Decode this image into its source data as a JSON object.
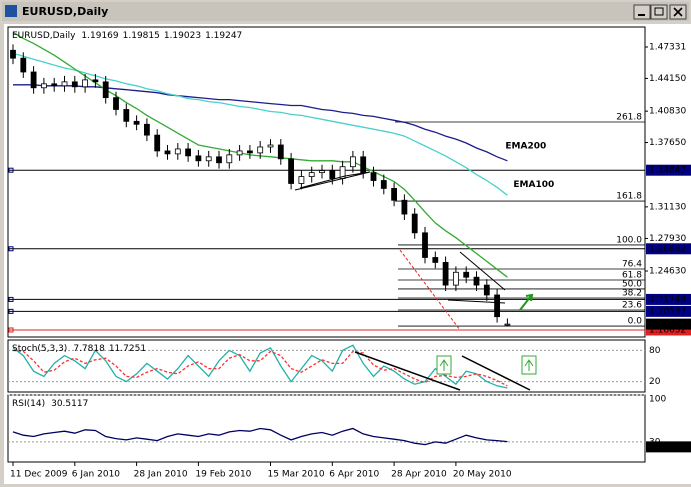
{
  "chart_data": [
    {
      "type": "candlestick",
      "title": "EURUSD,Daily",
      "categories": [
        "11 Dec 2009",
        null,
        null,
        null,
        null,
        null,
        "6 Jan 2010",
        null,
        null,
        null,
        null,
        null,
        "28 Jan 2010",
        null,
        null,
        null,
        null,
        null,
        "19 Feb 2010",
        null,
        null,
        null,
        null,
        null,
        null,
        "15 Mar 2010",
        null,
        null,
        null,
        null,
        null,
        "6 Apr 2010",
        null,
        null,
        null,
        null,
        null,
        "28 Apr 2010",
        null,
        null,
        null,
        null,
        null,
        "20 May 2010",
        null,
        null,
        null,
        null,
        null
      ],
      "open": [
        1.47,
        1.462,
        1.448,
        1.432,
        1.436,
        1.434,
        1.438,
        1.433,
        1.44,
        1.438,
        1.422,
        1.41,
        1.398,
        1.395,
        1.384,
        1.368,
        1.365,
        1.37,
        1.363,
        1.358,
        1.362,
        1.356,
        1.364,
        1.368,
        1.366,
        1.372,
        1.374,
        1.36,
        1.335,
        1.342,
        1.346,
        1.348,
        1.34,
        1.352,
        1.362,
        1.346,
        1.338,
        1.33,
        1.318,
        1.304,
        1.285,
        1.26,
        1.255,
        1.232,
        1.245,
        1.24,
        1.232,
        1.222,
        1.19169
      ],
      "high": [
        1.476,
        1.468,
        1.454,
        1.442,
        1.442,
        1.444,
        1.444,
        1.446,
        1.446,
        1.444,
        1.428,
        1.416,
        1.404,
        1.401,
        1.39,
        1.374,
        1.376,
        1.376,
        1.369,
        1.368,
        1.368,
        1.37,
        1.374,
        1.374,
        1.378,
        1.38,
        1.38,
        1.366,
        1.348,
        1.352,
        1.354,
        1.354,
        1.358,
        1.368,
        1.368,
        1.352,
        1.344,
        1.336,
        1.324,
        1.31,
        1.291,
        1.266,
        1.261,
        1.251,
        1.251,
        1.246,
        1.238,
        1.228,
        1.19815
      ],
      "low": [
        1.456,
        1.442,
        1.426,
        1.426,
        1.428,
        1.428,
        1.427,
        1.427,
        1.432,
        1.416,
        1.404,
        1.392,
        1.389,
        1.378,
        1.362,
        1.359,
        1.359,
        1.357,
        1.352,
        1.352,
        1.35,
        1.35,
        1.358,
        1.36,
        1.36,
        1.366,
        1.354,
        1.329,
        1.329,
        1.336,
        1.34,
        1.334,
        1.334,
        1.346,
        1.34,
        1.332,
        1.324,
        1.312,
        1.298,
        1.279,
        1.254,
        1.249,
        1.226,
        1.226,
        1.234,
        1.226,
        1.216,
        1.194,
        1.19023
      ],
      "close": [
        1.462,
        1.448,
        1.432,
        1.436,
        1.434,
        1.438,
        1.433,
        1.44,
        1.438,
        1.422,
        1.41,
        1.398,
        1.395,
        1.384,
        1.368,
        1.365,
        1.37,
        1.363,
        1.358,
        1.362,
        1.356,
        1.364,
        1.368,
        1.366,
        1.372,
        1.374,
        1.36,
        1.335,
        1.342,
        1.346,
        1.348,
        1.34,
        1.352,
        1.362,
        1.346,
        1.338,
        1.33,
        1.318,
        1.304,
        1.285,
        1.26,
        1.255,
        1.232,
        1.245,
        1.24,
        1.232,
        1.222,
        1.2,
        1.19247
      ],
      "series": [
        {
          "name": "EMA200",
          "color": "#1c1c8c",
          "values": [
            1.435,
            1.435,
            1.435,
            1.434,
            1.434,
            1.434,
            1.434,
            1.433,
            1.433,
            1.432,
            1.431,
            1.43,
            1.429,
            1.428,
            1.427,
            1.425,
            1.424,
            1.423,
            1.422,
            1.421,
            1.42,
            1.42,
            1.419,
            1.418,
            1.417,
            1.416,
            1.415,
            1.414,
            1.414,
            1.412,
            1.41,
            1.409,
            1.407,
            1.406,
            1.404,
            1.403,
            1.401,
            1.399,
            1.397,
            1.394,
            1.39,
            1.387,
            1.383,
            1.38,
            1.376,
            1.371,
            1.367,
            1.362,
            1.358
          ]
        },
        {
          "name": "EMA100",
          "color": "#48d1cc",
          "values": [
            1.467,
            1.464,
            1.461,
            1.458,
            1.455,
            1.452,
            1.45,
            1.447,
            1.444,
            1.441,
            1.439,
            1.436,
            1.434,
            1.431,
            1.429,
            1.426,
            1.424,
            1.421,
            1.42,
            1.418,
            1.417,
            1.415,
            1.413,
            1.412,
            1.41,
            1.408,
            1.407,
            1.405,
            1.404,
            1.402,
            1.4,
            1.398,
            1.396,
            1.394,
            1.392,
            1.39,
            1.388,
            1.386,
            1.383,
            1.378,
            1.373,
            1.368,
            1.363,
            1.357,
            1.351,
            1.344,
            1.338,
            1.331,
            1.323
          ]
        },
        {
          "color": "#33aa33",
          "values": [
            1.488,
            1.482,
            1.477,
            1.471,
            1.465,
            1.458,
            1.451,
            1.444,
            1.437,
            1.43,
            1.424,
            1.417,
            1.411,
            1.404,
            1.398,
            1.392,
            1.386,
            1.38,
            1.374,
            1.372,
            1.37,
            1.368,
            1.366,
            1.364,
            1.363,
            1.362,
            1.361,
            1.36,
            1.359,
            1.358,
            1.358,
            1.358,
            1.357,
            1.357,
            1.352,
            1.347,
            1.342,
            1.337,
            1.329,
            1.318,
            1.306,
            1.295,
            1.287,
            1.28,
            1.272,
            1.264,
            1.256,
            1.248,
            1.24
          ]
        }
      ],
      "ylim": [
        1.1794,
        1.4936
      ],
      "yticks": [
        1.47331,
        {
          "value": 1.4415,
          "label": "1.44150"
        },
        {
          "value": 1.4083,
          "label": "1.40830"
        },
        {
          "value": 1.3765,
          "label": "1.37650"
        },
        {
          "value": 1.3113,
          "label": "1.31130"
        },
        {
          "value": 1.2793,
          "label": "1.27930"
        },
        {
          "value": 1.2463,
          "label": "1.24630"
        }
      ],
      "hlines": [
        {
          "value": 1.34847,
          "color": "#000080"
        },
        {
          "value": 1.26882,
          "color": "#000080"
        },
        {
          "value": 1.21748,
          "color": "#000080"
        },
        {
          "value": 1.20537,
          "color": "#000080"
        },
        {
          "value": 1.18652,
          "color": "#e02020"
        }
      ],
      "fibo": [
        {
          "label": "261.8",
          "price": 1.3973
        },
        {
          "label": "161.8",
          "price": 1.3172
        },
        {
          "label": "100.0",
          "price": 1.2727
        },
        {
          "label": "76.4",
          "price": 1.2483
        },
        {
          "label": "61.8",
          "price": 1.2372
        },
        {
          "label": "50.0",
          "price": 1.2281
        },
        {
          "label": "38.2",
          "price": 1.2189
        },
        {
          "label": "23.6",
          "price": 1.2068
        },
        {
          "label": "0.0",
          "price": 1.1905
        }
      ]
    },
    {
      "type": "line",
      "title": "Stoch(5,3,3)",
      "series": [
        {
          "color": "#20b2aa",
          "values": [
            85,
            70,
            40,
            30,
            55,
            70,
            60,
            45,
            80,
            60,
            30,
            20,
            35,
            55,
            40,
            25,
            45,
            70,
            50,
            30,
            60,
            80,
            70,
            40,
            75,
            85,
            50,
            20,
            45,
            70,
            60,
            40,
            80,
            90,
            55,
            30,
            50,
            40,
            25,
            15,
            20,
            45,
            30,
            15,
            40,
            35,
            20,
            12,
            7.7818
          ]
        },
        {
          "color": "#ff3030",
          "style": "dashed",
          "values": [
            80,
            78,
            60,
            38,
            42,
            58,
            65,
            55,
            62,
            65,
            50,
            30,
            28,
            38,
            45,
            38,
            35,
            50,
            58,
            45,
            45,
            65,
            72,
            60,
            60,
            78,
            70,
            45,
            38,
            50,
            62,
            55,
            55,
            78,
            75,
            52,
            42,
            45,
            35,
            25,
            18,
            30,
            32,
            28,
            30,
            35,
            30,
            22,
            11.7251
          ]
        }
      ],
      "ylim": [
        0,
        100
      ],
      "yticks": [
        80,
        20
      ],
      "grid": true
    },
    {
      "type": "line",
      "title": "RSI(14)",
      "series": [
        {
          "color": "#000060",
          "values": [
            45,
            40,
            38,
            42,
            44,
            46,
            43,
            48,
            47,
            38,
            35,
            33,
            36,
            34,
            32,
            38,
            42,
            40,
            38,
            42,
            40,
            45,
            47,
            46,
            50,
            48,
            40,
            33,
            38,
            42,
            44,
            40,
            46,
            50,
            42,
            38,
            36,
            34,
            32,
            28,
            26,
            30,
            28,
            34,
            40,
            36,
            33,
            32,
            30.5117
          ]
        }
      ],
      "ylim": [
        0,
        100
      ],
      "yticks": [
        100,
        30
      ],
      "grid": true,
      "marker_value": 22.5806
    }
  ]
}
